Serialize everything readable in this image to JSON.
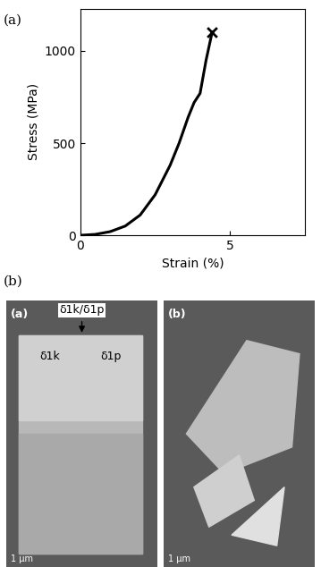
{
  "chart_data": {
    "type": "line",
    "x_label": "Strain (%)",
    "y_label": "Stress (MPa)",
    "xlim": [
      0,
      7.5
    ],
    "xticks": [
      0,
      5
    ],
    "ylim": [
      0,
      1230
    ],
    "yticks": [
      0,
      500,
      1000
    ],
    "series": [
      {
        "color": "#000000",
        "line_style": "solid",
        "x": [
          0,
          0.5,
          1.0,
          1.5,
          2.0,
          2.5,
          3.0,
          3.3,
          3.6,
          3.8,
          4.0,
          4.2,
          4.4
        ],
        "values": [
          0,
          5,
          20,
          50,
          110,
          220,
          380,
          500,
          640,
          720,
          770,
          950,
          1100
        ]
      },
      {
        "type": "scatter",
        "marker": "x",
        "color": "#000000",
        "x": [
          4.4
        ],
        "values": [
          1100
        ]
      }
    ]
  },
  "figure": {
    "panel_labels": [
      "(a)",
      "(b)"
    ],
    "images": [
      {
        "label": "(a)",
        "top_label": "δ1k/δ1p",
        "annotations": [
          "δ1k",
          "δ1p"
        ],
        "scale_bar": "1 µm"
      },
      {
        "label": "(b)",
        "scale_bar": "1 µm"
      }
    ]
  }
}
